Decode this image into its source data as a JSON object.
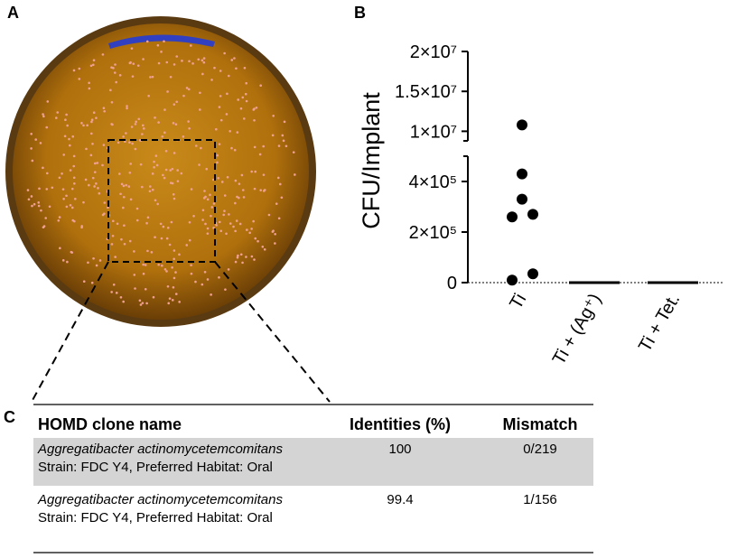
{
  "panel_labels": [
    "A",
    "B",
    "C"
  ],
  "chart_data": {
    "type": "scatter",
    "y_label": "CFU/Implant",
    "categories": [
      "Ti",
      "Ti + (Ag⁺)",
      "Ti + Tet."
    ],
    "points": [
      [
        10800000,
        430000,
        330000,
        270000,
        260000,
        35000,
        10000
      ],
      [],
      []
    ],
    "medians": [
      null,
      0,
      0
    ],
    "color": "#000000",
    "ylim_segments": [
      [
        0,
        500000
      ],
      [
        8800000,
        20000000
      ]
    ],
    "yticks": [
      0,
      {
        "value": 200000,
        "label": "2×10⁵"
      },
      {
        "value": 400000,
        "label": "4×10⁵"
      },
      {
        "value": 10000000,
        "label": "1×10⁷"
      },
      {
        "value": 15000000,
        "label": "1.5×10⁷"
      },
      {
        "value": 20000000,
        "label": "2×10⁷"
      }
    ]
  },
  "table": {
    "header": [
      "HOMD clone name",
      "Identities (%)",
      "Mismatch"
    ],
    "rows": [
      {
        "name": "Aggregatibacter actinomycetemcomitans",
        "detail": "Strain: FDC Y4, Preferred Habitat: Oral",
        "identities": "100",
        "mismatch": "0/219"
      },
      {
        "name": "Aggregatibacter actinomycetemcomitans",
        "detail": "Strain: FDC Y4, Preferred Habitat: Oral",
        "identities": "99.4",
        "mismatch": "1/156"
      }
    ]
  }
}
